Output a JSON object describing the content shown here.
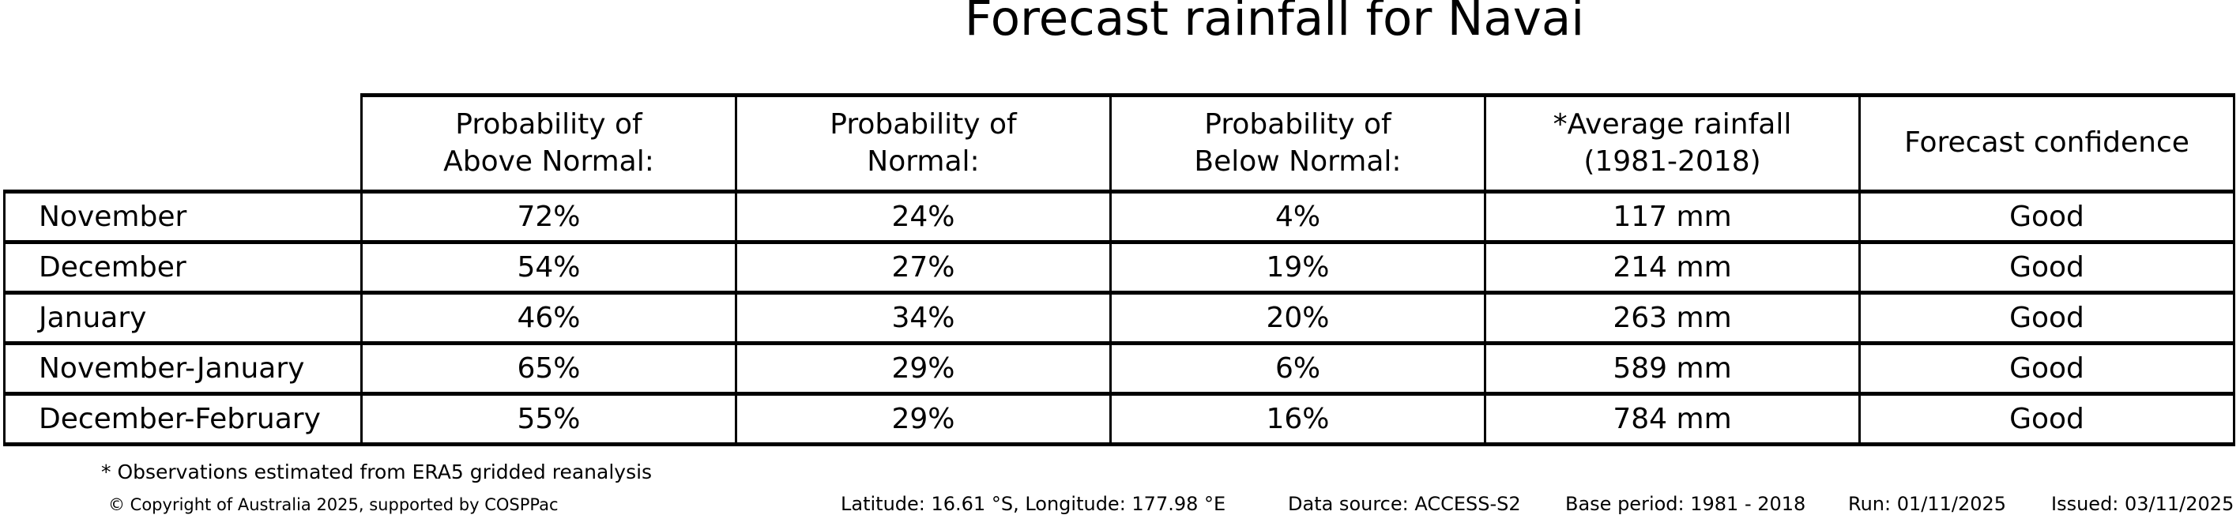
{
  "title": "Forecast rainfall for Navai",
  "colors": {
    "text": "#000000",
    "background": "#ffffff",
    "border": "#000000"
  },
  "table": {
    "columns": [
      [
        "Probability of",
        "Above Normal:"
      ],
      [
        "Probability of",
        "Normal:"
      ],
      [
        "Probability of",
        "Below Normal:"
      ],
      [
        "*Average rainfall",
        "(1981-2018)"
      ],
      [
        "Forecast confidence"
      ]
    ],
    "rows": [
      [
        "November",
        "72%",
        "24%",
        "4%",
        "117 mm",
        "Good"
      ],
      [
        "December",
        "54%",
        "27%",
        "19%",
        "214 mm",
        "Good"
      ],
      [
        "January",
        "46%",
        "34%",
        "20%",
        "263 mm",
        "Good"
      ],
      [
        "November-January",
        "65%",
        "29%",
        "6%",
        "589 mm",
        "Good"
      ],
      [
        "December-February",
        "55%",
        "29%",
        "16%",
        "784 mm",
        "Good"
      ]
    ]
  },
  "footnote": "* Observations estimated from ERA5 gridded reanalysis",
  "footer": {
    "copyright": "© Copyright of Australia 2025, supported by COSPPac",
    "location": "Latitude: 16.61 °S, Longitude: 177.98 °E",
    "data_source": "Data source: ACCESS-S2",
    "base_period": "Base period: 1981 - 2018",
    "run": "Run: 01/11/2025",
    "issued": "Issued: 03/11/2025"
  },
  "chart_data": {
    "type": "table",
    "title": "Forecast rainfall for Navai",
    "categories": [
      "November",
      "December",
      "January",
      "November-January",
      "December-February"
    ],
    "series": [
      {
        "name": "Probability of Above Normal (%)",
        "values": [
          72,
          54,
          46,
          65,
          55
        ]
      },
      {
        "name": "Probability of Normal (%)",
        "values": [
          24,
          27,
          34,
          29,
          29
        ]
      },
      {
        "name": "Probability of Below Normal (%)",
        "values": [
          4,
          19,
          20,
          6,
          16
        ]
      },
      {
        "name": "Average rainfall 1981-2018 (mm)",
        "values": [
          117,
          214,
          263,
          589,
          784
        ]
      },
      {
        "name": "Forecast confidence",
        "values": [
          "Good",
          "Good",
          "Good",
          "Good",
          "Good"
        ]
      }
    ],
    "layout": {
      "grid": "full-borders",
      "corner_cell": "empty",
      "footnote": "* Observations estimated from ERA5 gridded reanalysis"
    }
  }
}
